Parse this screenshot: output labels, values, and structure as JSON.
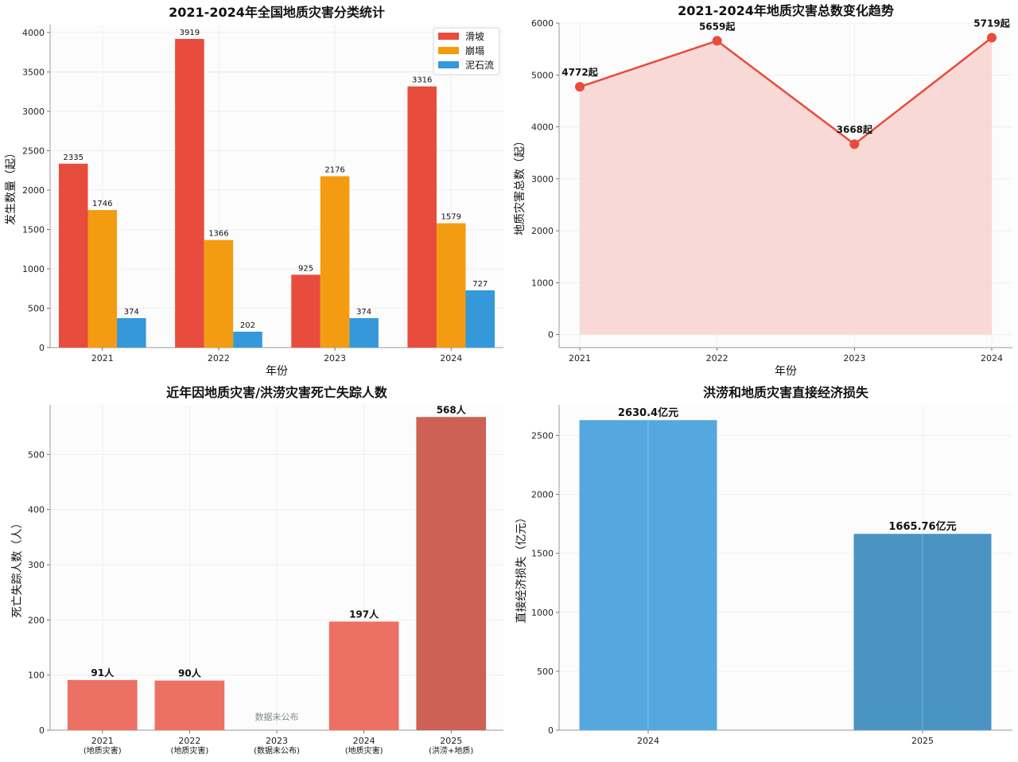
{
  "chart_data": [
    {
      "type": "bar",
      "title": "2021-2024年全国地质灾害分类统计",
      "xlabel": "年份",
      "ylabel": "发生数量（起）",
      "categories": [
        "2021",
        "2022",
        "2023",
        "2024"
      ],
      "ylim": [
        0,
        4100
      ],
      "yticks": [
        0,
        500,
        1000,
        1500,
        2000,
        2500,
        3000,
        3500,
        4000
      ],
      "grid": true,
      "legend": "top-right",
      "series": [
        {
          "name": "滑坡",
          "color": "#e74c3c",
          "values": [
            2335,
            3919,
            925,
            3316
          ]
        },
        {
          "name": "崩塌",
          "color": "#f39c12",
          "values": [
            1746,
            1366,
            2176,
            1579
          ]
        },
        {
          "name": "泥石流",
          "color": "#3498db",
          "values": [
            374,
            202,
            374,
            727
          ]
        }
      ]
    },
    {
      "type": "area",
      "title": "2021-2024年地质灾害总数变化趋势",
      "xlabel": "年份",
      "ylabel": "地质灾害总数（起）",
      "x": [
        "2021",
        "2022",
        "2023",
        "2024"
      ],
      "values": [
        4772,
        5659,
        3668,
        5719
      ],
      "labels": [
        "4772起",
        "5659起",
        "3668起",
        "5719起"
      ],
      "ylim": [
        -250,
        6000
      ],
      "yticks": [
        0,
        1000,
        2000,
        3000,
        4000,
        5000,
        6000
      ],
      "color": "#e74c3c",
      "fill": "#f8d7d4",
      "grid": true
    },
    {
      "type": "bar",
      "title": "近年因地质灾害/洪涝灾害死亡失踪人数",
      "ylabel": "死亡失踪人数（人）",
      "categories": [
        "2021",
        "2022",
        "2023",
        "2024",
        "2025"
      ],
      "sublabels": [
        "(地质灾害)",
        "(地质灾害)",
        "(数据未公布)",
        "(地质灾害)",
        "(洪涝+地质)"
      ],
      "values": [
        91,
        90,
        null,
        197,
        568
      ],
      "labels": [
        "91人",
        "90人",
        "",
        "197人",
        "568人"
      ],
      "missing_note": "数据未公布",
      "colors": [
        "#ec7063",
        "#ec7063",
        "#ec7063",
        "#ec7063",
        "#cd6155"
      ],
      "ylim": [
        0,
        590
      ],
      "yticks": [
        0,
        100,
        200,
        300,
        400,
        500
      ],
      "grid": true
    },
    {
      "type": "bar",
      "title": "洪涝和地质灾害直接经济损失",
      "ylabel": "直接经济损失（亿元）",
      "categories": [
        "2024",
        "2025"
      ],
      "values": [
        2630.4,
        1665.76
      ],
      "labels": [
        "2630.4亿元",
        "1665.76亿元"
      ],
      "colors": [
        "#55a8df",
        "#4a94c4"
      ],
      "ylim": [
        0,
        2760
      ],
      "yticks": [
        0,
        500,
        1000,
        1500,
        2000,
        2500
      ],
      "grid": true
    }
  ]
}
